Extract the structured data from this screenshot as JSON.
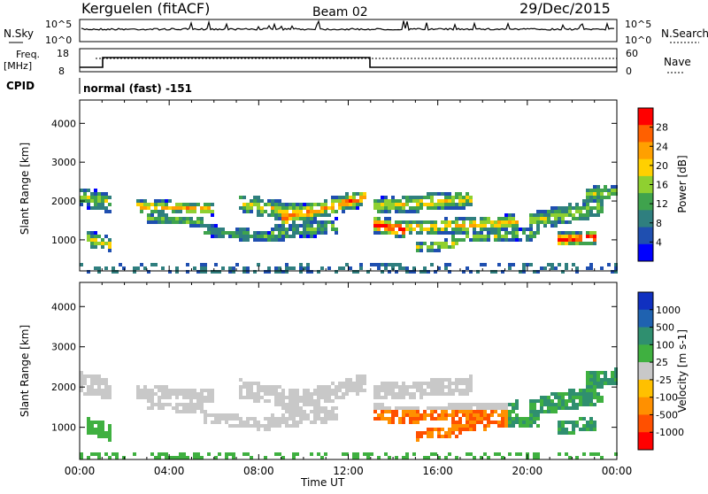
{
  "header": {
    "station": "Kerguelen (fitACF)",
    "beam": "Beam 02",
    "date": "29/Dec/2015"
  },
  "nsky_panel": {
    "left_label": "N.Sky",
    "left_ticks": [
      "10^5",
      "10^0"
    ],
    "right_ticks": [
      "10^5",
      "10^0"
    ],
    "right_label": "N.Search"
  },
  "freq_panel": {
    "left_label_1": "Freq.",
    "left_label_2": "[MHz]",
    "left_ticks": [
      "18",
      "8"
    ],
    "right_ticks": [
      "60",
      "0"
    ],
    "right_label": "Nave"
  },
  "cpid_panel": {
    "label": "CPID",
    "mode": "normal (fast) -151"
  },
  "x_axis": {
    "title": "Time UT",
    "ticks": [
      "00:00",
      "04:00",
      "08:00",
      "12:00",
      "16:00",
      "20:00",
      "00:00"
    ]
  },
  "colors": {
    "power_scale": [
      "#0000ff",
      "#1f4fb0",
      "#2f7f7f",
      "#3fa34d",
      "#8fd030",
      "#ffd000",
      "#ffa000",
      "#ff6000",
      "#ff0000"
    ],
    "velocity_scale": [
      "#1030c0",
      "#1f62b0",
      "#2f8f6f",
      "#3fb040",
      "#c8c8c8",
      "#ffc000",
      "#ff9000",
      "#ff5000",
      "#ff0000"
    ]
  },
  "chart_data": [
    {
      "type": "heatmap",
      "ylabel": "Slant Range [km]",
      "xlabel": "Time UT",
      "x_ticks": [
        "00:00",
        "04:00",
        "08:00",
        "12:00",
        "16:00",
        "20:00",
        "00:00"
      ],
      "y_ticks": [
        "1000",
        "2000",
        "3000",
        "4000"
      ],
      "ylim": [
        200,
        4600
      ],
      "colorbar": {
        "label": "Power [dB]",
        "ticks": [
          "4",
          "8",
          "12",
          "16",
          "20",
          "24",
          "28"
        ]
      }
    },
    {
      "type": "heatmap",
      "ylabel": "Slant Range [km]",
      "xlabel": "Time UT",
      "x_ticks": [
        "00:00",
        "04:00",
        "08:00",
        "12:00",
        "16:00",
        "20:00",
        "00:00"
      ],
      "y_ticks": [
        "1000",
        "2000",
        "3000",
        "4000"
      ],
      "ylim": [
        200,
        4600
      ],
      "colorbar": {
        "label": "Velocity [m s-1]",
        "ticks": [
          "1000",
          "500",
          "100",
          "25",
          "-25",
          "-100",
          "-500",
          "-1000"
        ]
      }
    }
  ]
}
